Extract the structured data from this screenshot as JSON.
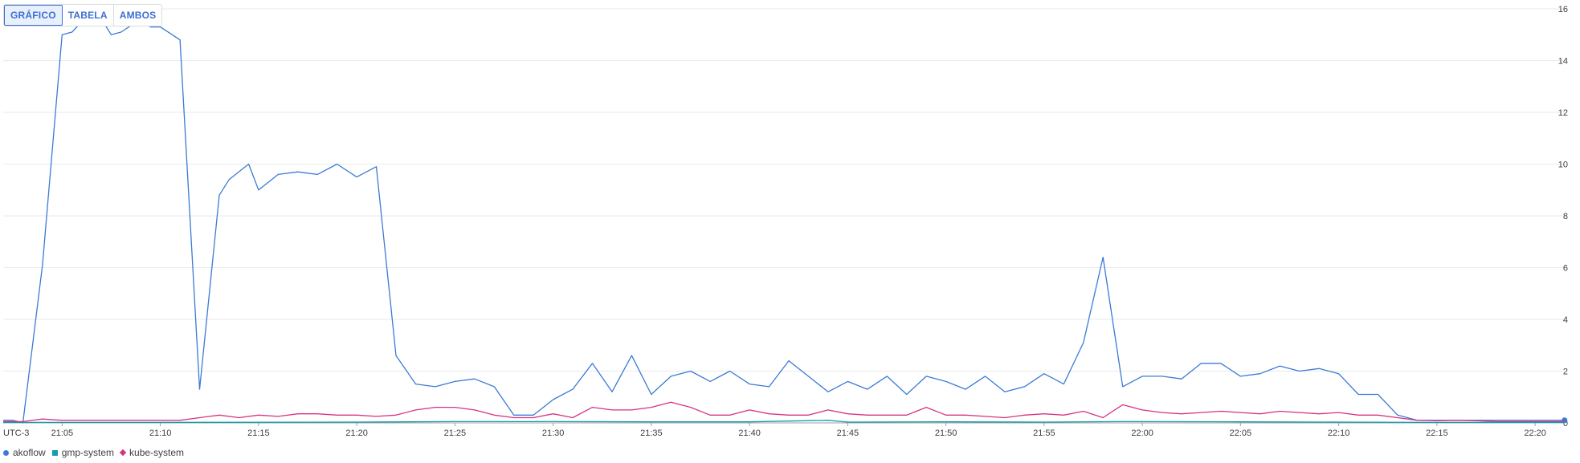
{
  "view_toggle": {
    "buttons": [
      {
        "label": "GRÁFICO",
        "active": true
      },
      {
        "label": "TABELA",
        "active": false
      },
      {
        "label": "AMBOS",
        "active": false
      }
    ]
  },
  "colors": {
    "akoflow": "#3a7bd5",
    "gmp-system": "#129eaf",
    "kube-system": "#d63384",
    "grid": "#e8eaed",
    "axis": "#9aa0a6"
  },
  "chart_data": {
    "type": "line",
    "timezone_label": "UTC-3",
    "x_unit": "time of day (HH:MM)",
    "x_range": [
      "21:02",
      "22:22"
    ],
    "ylim": [
      0,
      16
    ],
    "y_ticks": [
      0,
      2,
      4,
      6,
      8,
      10,
      12,
      14,
      16
    ],
    "x_ticks": [
      "21:05",
      "21:10",
      "21:15",
      "21:20",
      "21:25",
      "21:30",
      "21:35",
      "21:40",
      "21:45",
      "21:50",
      "21:55",
      "22:00",
      "22:05",
      "22:10",
      "22:15",
      "22:20"
    ],
    "grid": true,
    "legend_position": "bottom-left",
    "series": [
      {
        "name": "akoflow",
        "marker": "circle",
        "color": "#3a7bd5",
        "last_point_marker": true,
        "points": [
          [
            "21:02:00",
            0.1
          ],
          [
            "21:02:30",
            0.1
          ],
          [
            "21:03:00",
            0.0
          ],
          [
            "21:04:00",
            6.1
          ],
          [
            "21:05:00",
            15.0
          ],
          [
            "21:05:30",
            15.1
          ],
          [
            "21:06:00",
            15.5
          ],
          [
            "21:06:30",
            15.8
          ],
          [
            "21:07:00",
            15.6
          ],
          [
            "21:07:30",
            15.0
          ],
          [
            "21:08:00",
            15.1
          ],
          [
            "21:09:00",
            15.6
          ],
          [
            "21:09:30",
            15.3
          ],
          [
            "21:10:00",
            15.3
          ],
          [
            "21:11:00",
            14.8
          ],
          [
            "21:12:00",
            1.3
          ],
          [
            "21:13:00",
            8.8
          ],
          [
            "21:13:30",
            9.4
          ],
          [
            "21:14:30",
            10.0
          ],
          [
            "21:15:00",
            9.0
          ],
          [
            "21:16:00",
            9.6
          ],
          [
            "21:17:00",
            9.7
          ],
          [
            "21:18:00",
            9.6
          ],
          [
            "21:19:00",
            10.0
          ],
          [
            "21:20:00",
            9.5
          ],
          [
            "21:21:00",
            9.9
          ],
          [
            "21:22:00",
            2.6
          ],
          [
            "21:23:00",
            1.5
          ],
          [
            "21:24:00",
            1.4
          ],
          [
            "21:25:00",
            1.6
          ],
          [
            "21:26:00",
            1.7
          ],
          [
            "21:27:00",
            1.4
          ],
          [
            "21:28:00",
            0.3
          ],
          [
            "21:29:00",
            0.3
          ],
          [
            "21:30:00",
            0.9
          ],
          [
            "21:31:00",
            1.3
          ],
          [
            "21:32:00",
            2.3
          ],
          [
            "21:33:00",
            1.2
          ],
          [
            "21:34:00",
            2.6
          ],
          [
            "21:35:00",
            1.1
          ],
          [
            "21:36:00",
            1.8
          ],
          [
            "21:37:00",
            2.0
          ],
          [
            "21:38:00",
            1.6
          ],
          [
            "21:39:00",
            2.0
          ],
          [
            "21:40:00",
            1.5
          ],
          [
            "21:41:00",
            1.4
          ],
          [
            "21:42:00",
            2.4
          ],
          [
            "21:43:00",
            1.8
          ],
          [
            "21:44:00",
            1.2
          ],
          [
            "21:45:00",
            1.6
          ],
          [
            "21:46:00",
            1.3
          ],
          [
            "21:47:00",
            1.8
          ],
          [
            "21:48:00",
            1.1
          ],
          [
            "21:49:00",
            1.8
          ],
          [
            "21:50:00",
            1.6
          ],
          [
            "21:51:00",
            1.3
          ],
          [
            "21:52:00",
            1.8
          ],
          [
            "21:53:00",
            1.2
          ],
          [
            "21:54:00",
            1.4
          ],
          [
            "21:55:00",
            1.9
          ],
          [
            "21:56:00",
            1.5
          ],
          [
            "21:57:00",
            3.1
          ],
          [
            "21:58:00",
            6.4
          ],
          [
            "21:59:00",
            1.4
          ],
          [
            "22:00:00",
            1.8
          ],
          [
            "22:01:00",
            1.8
          ],
          [
            "22:02:00",
            1.7
          ],
          [
            "22:03:00",
            2.3
          ],
          [
            "22:04:00",
            2.3
          ],
          [
            "22:05:00",
            1.8
          ],
          [
            "22:06:00",
            1.9
          ],
          [
            "22:07:00",
            2.2
          ],
          [
            "22:08:00",
            2.0
          ],
          [
            "22:09:00",
            2.1
          ],
          [
            "22:10:00",
            1.9
          ],
          [
            "22:11:00",
            1.1
          ],
          [
            "22:12:00",
            1.1
          ],
          [
            "22:13:00",
            0.3
          ],
          [
            "22:14:00",
            0.1
          ],
          [
            "22:15:00",
            0.1
          ],
          [
            "22:16:00",
            0.1
          ],
          [
            "22:17:00",
            0.1
          ],
          [
            "22:18:00",
            0.1
          ],
          [
            "22:19:00",
            0.1
          ],
          [
            "22:21:30",
            0.1
          ]
        ]
      },
      {
        "name": "gmp-system",
        "marker": "square",
        "color": "#129eaf",
        "points": [
          [
            "21:02:00",
            0.02
          ],
          [
            "21:10:00",
            0.02
          ],
          [
            "21:20:00",
            0.03
          ],
          [
            "21:25:00",
            0.05
          ],
          [
            "21:30:00",
            0.05
          ],
          [
            "21:35:00",
            0.04
          ],
          [
            "21:40:00",
            0.04
          ],
          [
            "21:44:00",
            0.1
          ],
          [
            "21:45:00",
            0.03
          ],
          [
            "21:50:00",
            0.04
          ],
          [
            "21:55:00",
            0.03
          ],
          [
            "21:59:00",
            0.05
          ],
          [
            "22:05:00",
            0.04
          ],
          [
            "22:10:00",
            0.03
          ],
          [
            "22:15:00",
            0.02
          ],
          [
            "22:21:30",
            0.02
          ]
        ]
      },
      {
        "name": "kube-system",
        "marker": "diamond",
        "color": "#d63384",
        "points": [
          [
            "21:02:00",
            0.05
          ],
          [
            "21:03:00",
            0.05
          ],
          [
            "21:04:00",
            0.15
          ],
          [
            "21:05:00",
            0.1
          ],
          [
            "21:06:00",
            0.1
          ],
          [
            "21:08:00",
            0.1
          ],
          [
            "21:10:00",
            0.1
          ],
          [
            "21:11:00",
            0.1
          ],
          [
            "21:12:00",
            0.2
          ],
          [
            "21:13:00",
            0.3
          ],
          [
            "21:14:00",
            0.2
          ],
          [
            "21:15:00",
            0.3
          ],
          [
            "21:16:00",
            0.25
          ],
          [
            "21:17:00",
            0.35
          ],
          [
            "21:18:00",
            0.35
          ],
          [
            "21:19:00",
            0.3
          ],
          [
            "21:20:00",
            0.3
          ],
          [
            "21:21:00",
            0.25
          ],
          [
            "21:22:00",
            0.3
          ],
          [
            "21:23:00",
            0.5
          ],
          [
            "21:24:00",
            0.6
          ],
          [
            "21:25:00",
            0.6
          ],
          [
            "21:26:00",
            0.5
          ],
          [
            "21:27:00",
            0.3
          ],
          [
            "21:28:00",
            0.2
          ],
          [
            "21:29:00",
            0.2
          ],
          [
            "21:30:00",
            0.35
          ],
          [
            "21:31:00",
            0.2
          ],
          [
            "21:32:00",
            0.6
          ],
          [
            "21:33:00",
            0.5
          ],
          [
            "21:34:00",
            0.5
          ],
          [
            "21:35:00",
            0.6
          ],
          [
            "21:36:00",
            0.8
          ],
          [
            "21:37:00",
            0.6
          ],
          [
            "21:38:00",
            0.3
          ],
          [
            "21:39:00",
            0.3
          ],
          [
            "21:40:00",
            0.5
          ],
          [
            "21:41:00",
            0.35
          ],
          [
            "21:42:00",
            0.3
          ],
          [
            "21:43:00",
            0.3
          ],
          [
            "21:44:00",
            0.5
          ],
          [
            "21:45:00",
            0.35
          ],
          [
            "21:46:00",
            0.3
          ],
          [
            "21:47:00",
            0.3
          ],
          [
            "21:48:00",
            0.3
          ],
          [
            "21:49:00",
            0.6
          ],
          [
            "21:50:00",
            0.3
          ],
          [
            "21:51:00",
            0.3
          ],
          [
            "21:52:00",
            0.25
          ],
          [
            "21:53:00",
            0.2
          ],
          [
            "21:54:00",
            0.3
          ],
          [
            "21:55:00",
            0.35
          ],
          [
            "21:56:00",
            0.3
          ],
          [
            "21:57:00",
            0.45
          ],
          [
            "21:58:00",
            0.2
          ],
          [
            "21:59:00",
            0.7
          ],
          [
            "22:00:00",
            0.5
          ],
          [
            "22:01:00",
            0.4
          ],
          [
            "22:02:00",
            0.35
          ],
          [
            "22:03:00",
            0.4
          ],
          [
            "22:04:00",
            0.45
          ],
          [
            "22:05:00",
            0.4
          ],
          [
            "22:06:00",
            0.35
          ],
          [
            "22:07:00",
            0.45
          ],
          [
            "22:08:00",
            0.4
          ],
          [
            "22:09:00",
            0.35
          ],
          [
            "22:10:00",
            0.4
          ],
          [
            "22:11:00",
            0.3
          ],
          [
            "22:12:00",
            0.3
          ],
          [
            "22:13:00",
            0.2
          ],
          [
            "22:14:00",
            0.1
          ],
          [
            "22:15:00",
            0.08
          ],
          [
            "22:16:00",
            0.1
          ],
          [
            "22:17:00",
            0.08
          ],
          [
            "22:18:00",
            0.05
          ],
          [
            "22:21:30",
            0.05
          ]
        ]
      }
    ]
  }
}
